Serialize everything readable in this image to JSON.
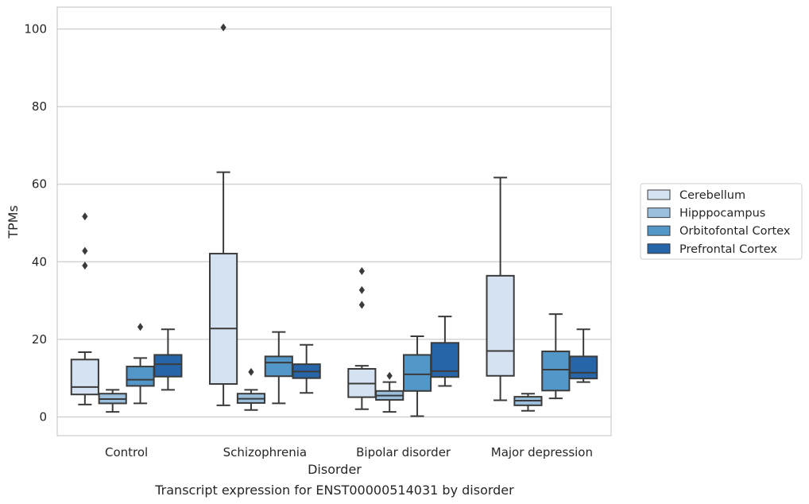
{
  "chart_data": {
    "type": "box",
    "caption": "Transcript expression for ENST00000514031 by disorder",
    "xlabel": "Disorder",
    "ylabel": "TPMs",
    "ylim": [
      -5,
      105
    ],
    "yticks": [
      0,
      20,
      40,
      60,
      80,
      100
    ],
    "grid": "horizontal",
    "legend_position": "right, outside plot",
    "categories": [
      "Control",
      "Schizophrenia",
      "Bipolar disorder",
      "Major depression"
    ],
    "series": [
      {
        "name": "Cerebellum",
        "color": "#d4e2f1",
        "boxes": [
          {
            "whislo": 3.2,
            "q1": 5.8,
            "med": 7.7,
            "q3": 14.8,
            "whishi": 16.7,
            "fliers": [
              39.0,
              42.8,
              51.7
            ]
          },
          {
            "whislo": 3.0,
            "q1": 8.5,
            "med": 22.8,
            "q3": 42.1,
            "whishi": 63.1,
            "fliers": [
              100.4
            ]
          },
          {
            "whislo": 2.0,
            "q1": 5.1,
            "med": 8.6,
            "q3": 12.4,
            "whishi": 13.2,
            "fliers": [
              28.9,
              32.7,
              37.6
            ]
          },
          {
            "whislo": 4.3,
            "q1": 10.6,
            "med": 17.0,
            "q3": 36.4,
            "whishi": 61.7,
            "fliers": []
          }
        ]
      },
      {
        "name": "Hipppocampus",
        "color": "#9ac0dd",
        "boxes": [
          {
            "whislo": 1.3,
            "q1": 3.5,
            "med": 4.6,
            "q3": 6.0,
            "whishi": 7.0,
            "fliers": []
          },
          {
            "whislo": 1.8,
            "q1": 3.6,
            "med": 4.7,
            "q3": 6.0,
            "whishi": 7.0,
            "fliers": [
              11.6
            ]
          },
          {
            "whislo": 1.3,
            "q1": 4.4,
            "med": 5.5,
            "q3": 6.7,
            "whishi": 9.0,
            "fliers": [
              10.6
            ]
          },
          {
            "whislo": 1.6,
            "q1": 3.0,
            "med": 4.2,
            "q3": 5.2,
            "whishi": 6.0,
            "fliers": []
          }
        ]
      },
      {
        "name": "Orbitofontal Cortex",
        "color": "#5396c8",
        "boxes": [
          {
            "whislo": 3.5,
            "q1": 8.0,
            "med": 9.6,
            "q3": 13.0,
            "whishi": 15.2,
            "fliers": [
              23.2
            ]
          },
          {
            "whislo": 3.5,
            "q1": 10.5,
            "med": 14.0,
            "q3": 15.6,
            "whishi": 21.9,
            "fliers": []
          },
          {
            "whislo": 0.2,
            "q1": 6.7,
            "med": 11.0,
            "q3": 16.0,
            "whishi": 20.8,
            "fliers": []
          },
          {
            "whislo": 4.8,
            "q1": 6.8,
            "med": 12.2,
            "q3": 16.9,
            "whishi": 26.5,
            "fliers": []
          }
        ]
      },
      {
        "name": "Prefrontal Cortex",
        "color": "#2565a8",
        "boxes": [
          {
            "whislo": 7.0,
            "q1": 10.4,
            "med": 13.6,
            "q3": 16.0,
            "whishi": 22.6,
            "fliers": []
          },
          {
            "whislo": 6.2,
            "q1": 10.0,
            "med": 11.7,
            "q3": 13.6,
            "whishi": 18.6,
            "fliers": []
          },
          {
            "whislo": 8.0,
            "q1": 10.3,
            "med": 11.8,
            "q3": 19.1,
            "whishi": 25.9,
            "fliers": []
          },
          {
            "whislo": 9.0,
            "q1": 9.9,
            "med": 11.4,
            "q3": 15.6,
            "whishi": 22.6,
            "fliers": []
          }
        ]
      }
    ]
  }
}
